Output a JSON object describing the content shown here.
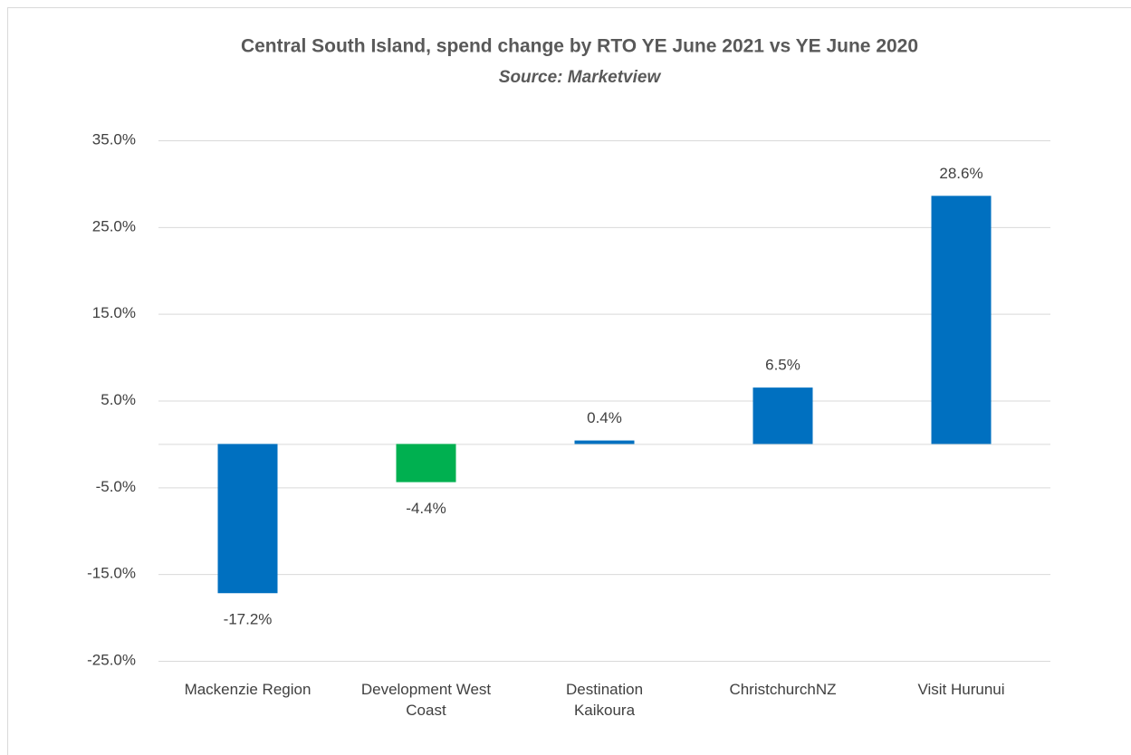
{
  "chart_data": {
    "type": "bar",
    "title": "Central South Island, spend change by RTO YE June 2021 vs YE June 2020",
    "subtitle": "Source: Marketview",
    "categories": [
      "Mackenzie Region",
      "Development West Coast",
      "Destination Kaikoura",
      "ChristchurchNZ",
      "Visit Hurunui"
    ],
    "values": [
      -17.2,
      -4.4,
      0.4,
      6.5,
      28.6
    ],
    "value_labels": [
      "-17.2%",
      "-4.4%",
      "0.4%",
      "6.5%",
      "28.6%"
    ],
    "colors": [
      "#0070c0",
      "#00b050",
      "#0070c0",
      "#0070c0",
      "#0070c0"
    ],
    "ylim": [
      -25,
      35
    ],
    "yticks": [
      {
        "value": -25,
        "label": "-25.0%"
      },
      {
        "value": -15,
        "label": "-15.0%"
      },
      {
        "value": -5,
        "label": "-5.0%"
      },
      {
        "value": 5,
        "label": "5.0%"
      },
      {
        "value": 15,
        "label": "15.0%"
      },
      {
        "value": 25,
        "label": "25.0%"
      },
      {
        "value": 35,
        "label": "35.0%"
      }
    ],
    "grid": true
  }
}
